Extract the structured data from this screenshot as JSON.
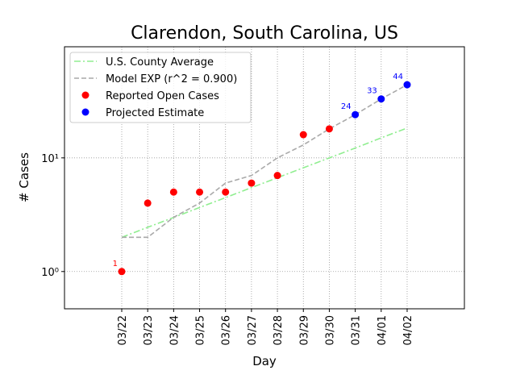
{
  "chart_data": {
    "type": "line",
    "title": "Clarendon, South Carolina, US",
    "xlabel": "Day",
    "ylabel": "# Cases",
    "categories": [
      "03/22",
      "03/23",
      "03/24",
      "03/25",
      "03/26",
      "03/27",
      "03/28",
      "03/29",
      "03/30",
      "03/31",
      "04/01",
      "04/02"
    ],
    "ylog": true,
    "ylim": [
      0.47,
      95
    ],
    "yticks": [
      {
        "value": 1,
        "label": "10⁰"
      },
      {
        "value": 10,
        "label": "10¹"
      }
    ],
    "grid": true,
    "legend": "upper left",
    "series": [
      {
        "name": "U.S. County Average",
        "color": "#90ee90",
        "style": "dashdot",
        "values": [
          2,
          2.45,
          2.99,
          3.66,
          4.47,
          5.47,
          6.69,
          8.18,
          10.0,
          12.2,
          15.0,
          18.3
        ]
      },
      {
        "name": "Model EXP (r^2 = 0.900)",
        "color": "#a9a9a9",
        "style": "dashed",
        "values": [
          2,
          2,
          3,
          4,
          6,
          7,
          10,
          13,
          18,
          24,
          33,
          44
        ]
      },
      {
        "name": "Reported Open Cases",
        "color": "#ff0000",
        "style": "markers",
        "values": [
          1,
          4,
          5,
          5,
          5,
          6,
          7,
          16,
          18,
          null,
          null,
          null
        ],
        "value_labels": [
          "1",
          null,
          null,
          null,
          null,
          null,
          null,
          null,
          null,
          null,
          null,
          null
        ]
      },
      {
        "name": "Projected Estimate",
        "color": "#0000ff",
        "style": "markers",
        "values": [
          null,
          null,
          null,
          null,
          null,
          null,
          null,
          null,
          null,
          24,
          33,
          44
        ],
        "value_labels": [
          null,
          null,
          null,
          null,
          null,
          null,
          null,
          null,
          null,
          "24",
          "33",
          "44"
        ]
      }
    ]
  }
}
